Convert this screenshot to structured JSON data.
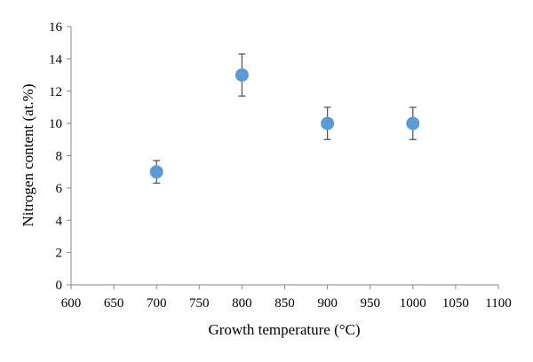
{
  "chart_data": {
    "type": "scatter",
    "title": "",
    "xlabel": "Growth temperature (°C)",
    "ylabel": "Nitrogen content (at.%)",
    "xlim": [
      600,
      1100
    ],
    "ylim": [
      0,
      16
    ],
    "x_ticks": [
      600,
      650,
      700,
      750,
      800,
      850,
      900,
      950,
      1000,
      1050,
      1100
    ],
    "y_ticks": [
      0,
      2,
      4,
      6,
      8,
      10,
      12,
      14,
      16
    ],
    "grid": false,
    "legend": "none",
    "marker_color": "#5b9bd5",
    "error_bar_color": "#595959",
    "series": [
      {
        "points": [
          {
            "x": 700,
            "y": 7,
            "err_low": 0.7,
            "err_high": 0.7
          },
          {
            "x": 800,
            "y": 13,
            "err_low": 1.3,
            "err_high": 1.3
          },
          {
            "x": 900,
            "y": 10,
            "err_low": 1.0,
            "err_high": 1.0
          },
          {
            "x": 1000,
            "y": 10,
            "err_low": 1.0,
            "err_high": 1.0
          }
        ]
      }
    ]
  }
}
